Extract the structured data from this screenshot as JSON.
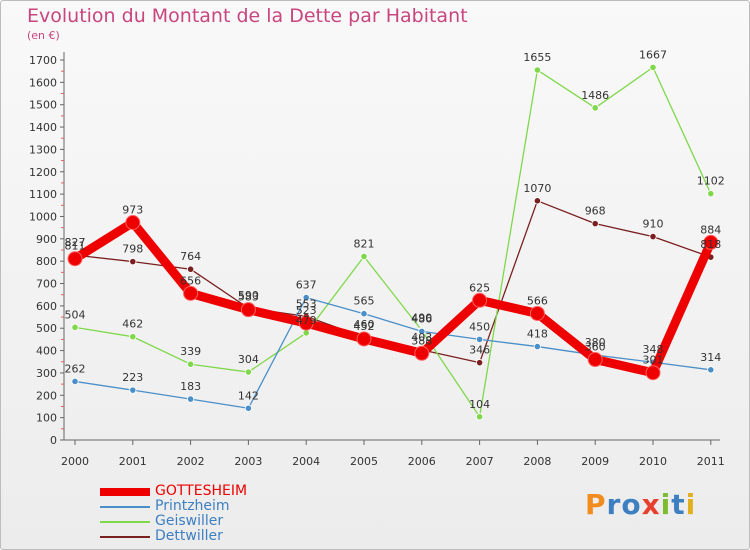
{
  "chart_data": {
    "type": "line",
    "title": "Evolution du Montant de la Dette par Habitant",
    "unit": "(en €)",
    "x": [
      "2000",
      "2001",
      "2002",
      "2003",
      "2004",
      "2005",
      "2006",
      "2007",
      "2008",
      "2009",
      "2010",
      "2011"
    ],
    "ylim": [
      0,
      1700
    ],
    "yticks": [
      0,
      100,
      200,
      300,
      400,
      500,
      600,
      700,
      800,
      900,
      1000,
      1100,
      1200,
      1300,
      1400,
      1500,
      1600,
      1700
    ],
    "grid": false,
    "legend_position": "bottom-left",
    "series": [
      {
        "name": "GOTTESHEIM",
        "color": "#ee0000",
        "values": [
          811,
          973,
          656,
          583,
          523,
          452,
          388,
          625,
          566,
          360,
          301,
          884
        ]
      },
      {
        "name": "Printzheim",
        "color": "#4a8fc9",
        "values": [
          262,
          223,
          183,
          142,
          637,
          565,
          486,
          450,
          418,
          380,
          348,
          314
        ]
      },
      {
        "name": "Geiswiller",
        "color": "#7fd84a",
        "values": [
          504,
          462,
          339,
          304,
          479,
          821,
          490,
          104,
          1655,
          1486,
          1667,
          1102
        ]
      },
      {
        "name": "Dettwiller",
        "color": "#7a1f1f",
        "values": [
          827,
          798,
          764,
          590,
          553,
          460,
          403,
          346,
          1070,
          968,
          910,
          818
        ]
      }
    ]
  },
  "logo": {
    "text": "Proxiti",
    "colors": [
      "#f28c1f",
      "#3d7fc1",
      "#3d7fc1",
      "#e8402f",
      "#7dbb30",
      "#3d7fc1",
      "#e0b020"
    ]
  }
}
